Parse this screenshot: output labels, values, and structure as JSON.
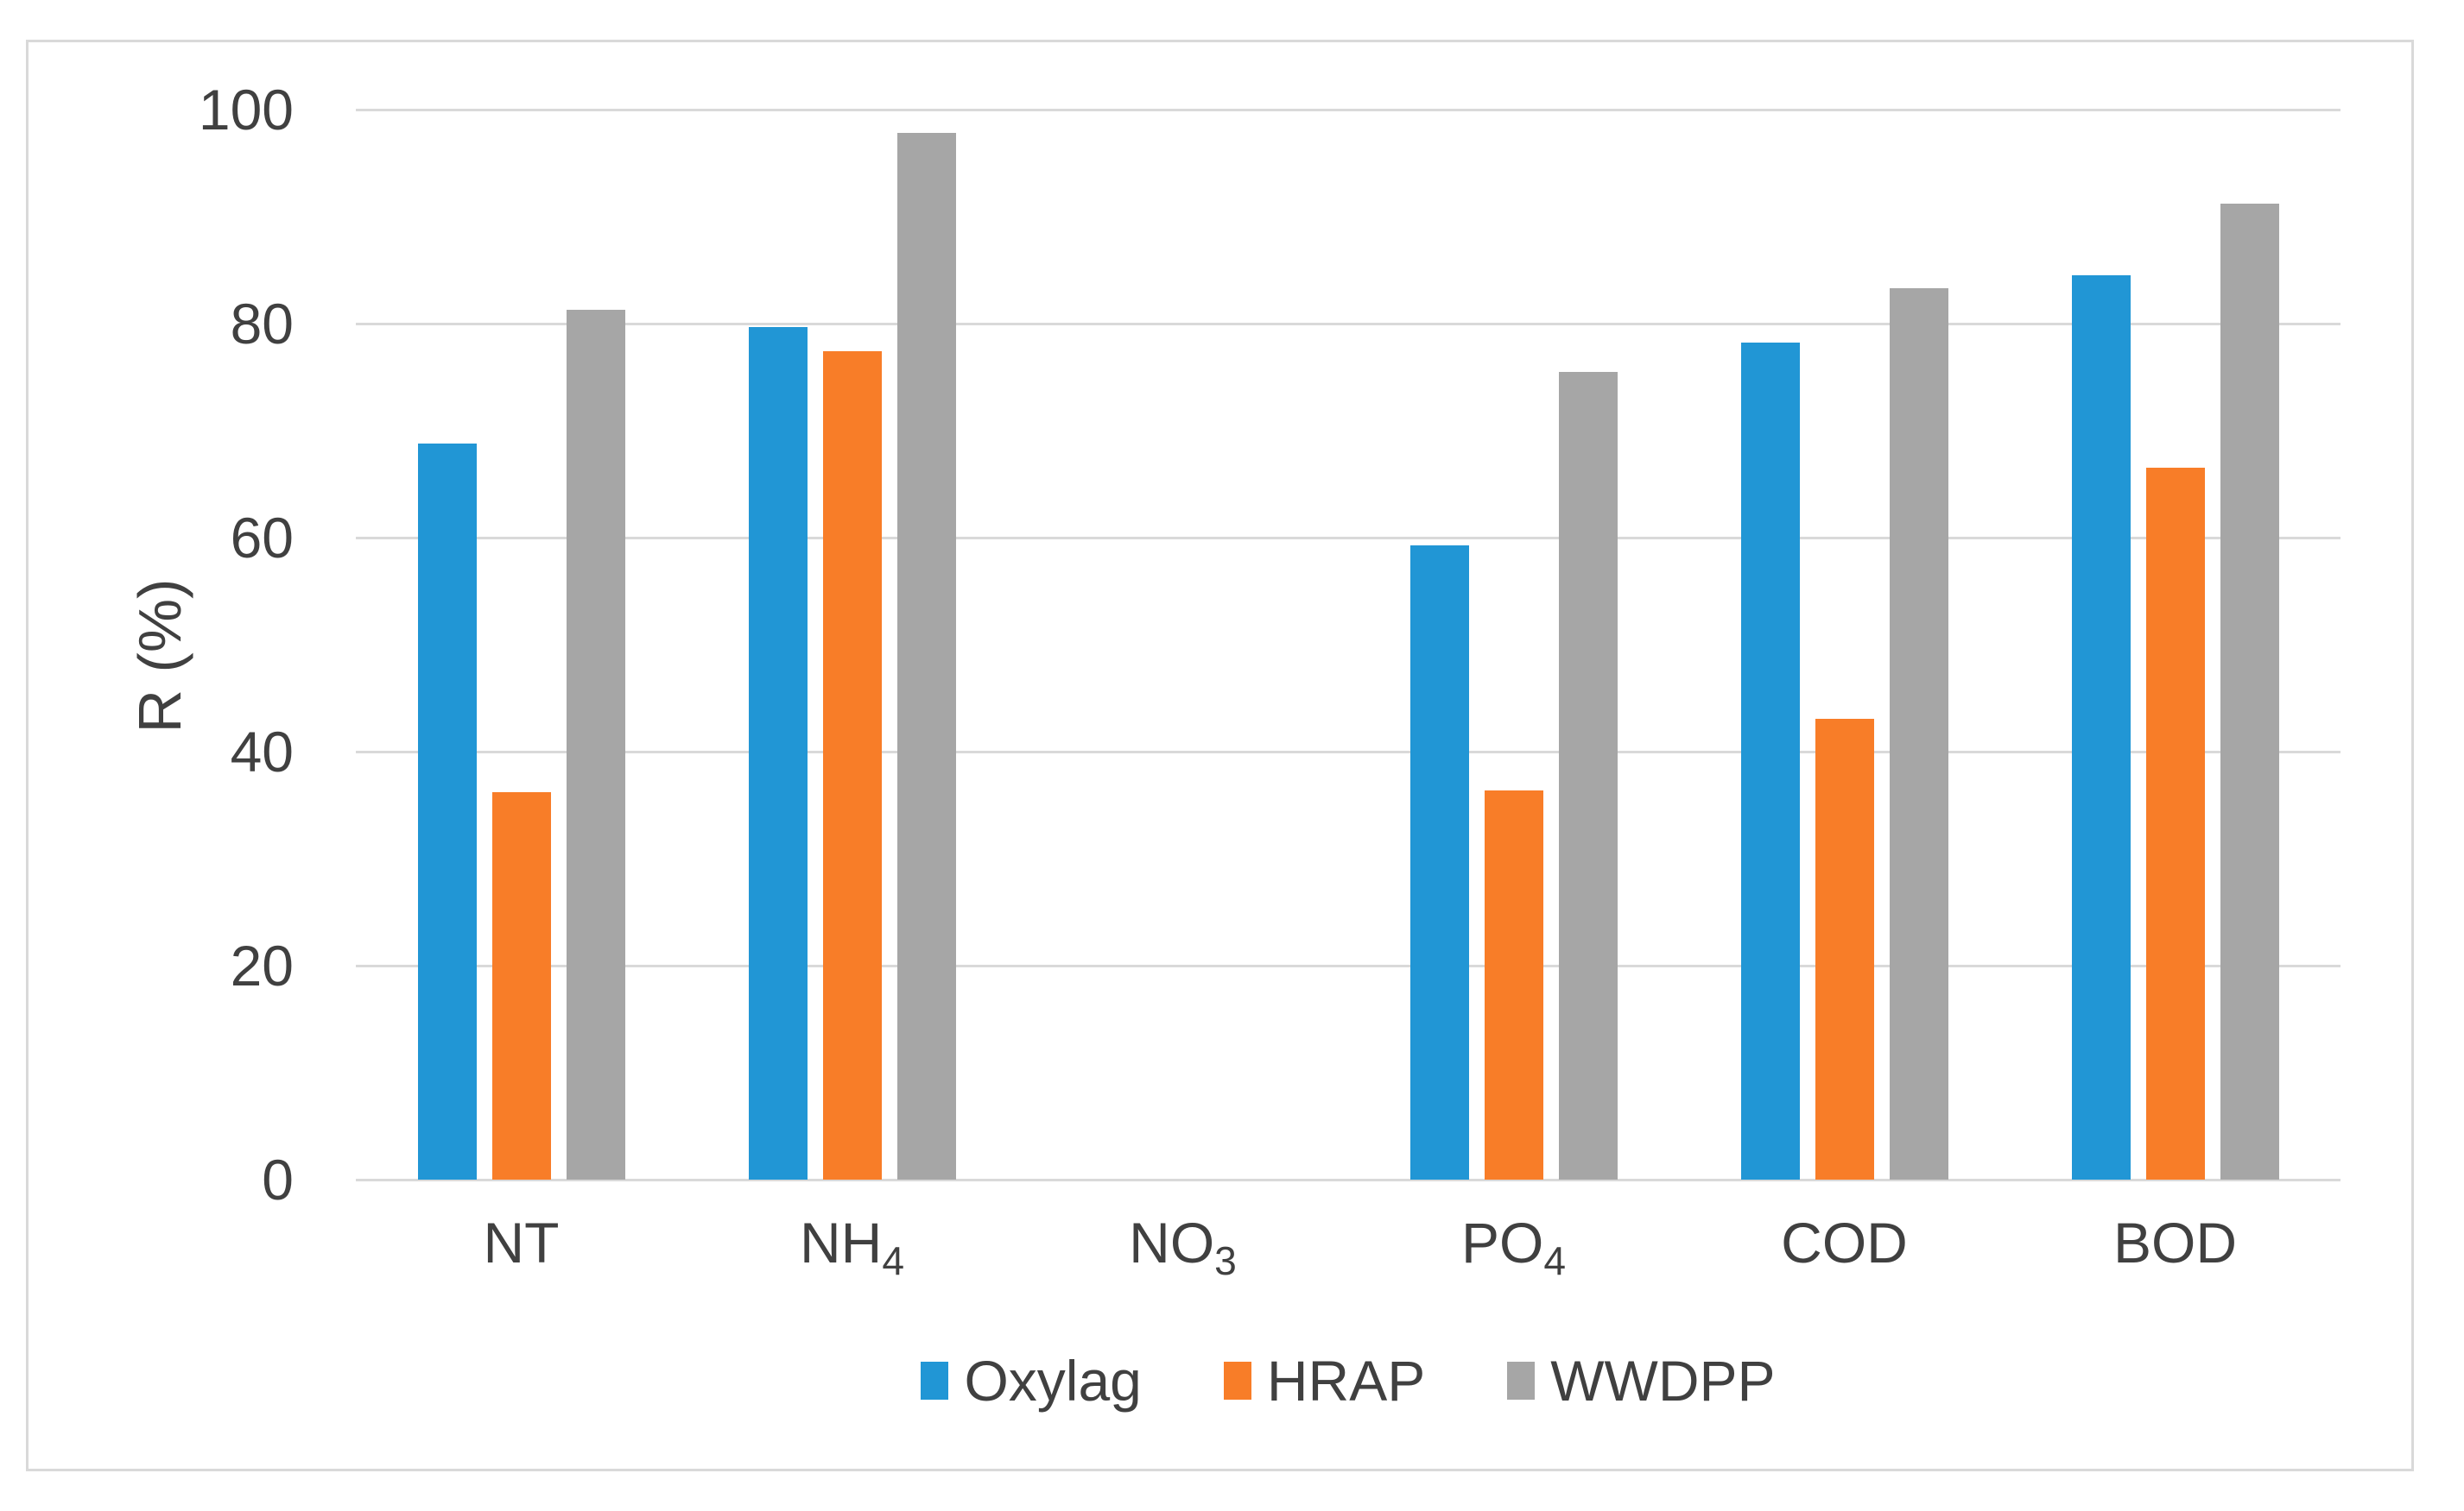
{
  "chart_data": {
    "type": "bar",
    "title": "",
    "xlabel": "",
    "ylabel": "R (%)",
    "ylim": [
      0,
      100
    ],
    "yticks": [
      0,
      20,
      40,
      60,
      80,
      100
    ],
    "grid": true,
    "legend_position": "bottom-center",
    "categories": [
      "NT",
      "NH4",
      "NO3",
      "PO4",
      "COD",
      "BOD"
    ],
    "categories_rich": [
      {
        "base": "NT",
        "sub": ""
      },
      {
        "base": "NH",
        "sub": "4"
      },
      {
        "base": "NO",
        "sub": "3"
      },
      {
        "base": "PO",
        "sub": "4"
      },
      {
        "base": "COD",
        "sub": ""
      },
      {
        "base": "BOD",
        "sub": ""
      }
    ],
    "series": [
      {
        "name": "Oxylag",
        "color": "#2196D5",
        "values": [
          68.8,
          79.7,
          0,
          59.3,
          78.2,
          84.5
        ]
      },
      {
        "name": "HRAP",
        "color": "#F87D28",
        "values": [
          36.2,
          77.4,
          0,
          36.4,
          43.1,
          66.5
        ]
      },
      {
        "name": "WWDPP",
        "color": "#A6A6A6",
        "values": [
          81.3,
          97.8,
          0,
          75.5,
          83.3,
          91.2
        ]
      }
    ],
    "colors": {
      "gridline": "#D9D9D9",
      "axis_text": "#404040",
      "frame_border": "#D9D9D9",
      "background": "#FFFFFF"
    }
  }
}
